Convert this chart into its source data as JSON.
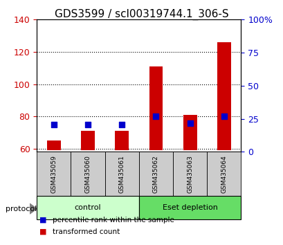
{
  "title": "GDS3599 / scl00319744.1_306-S",
  "samples": [
    "GSM435059",
    "GSM435060",
    "GSM435061",
    "GSM435062",
    "GSM435063",
    "GSM435064"
  ],
  "bar_values": [
    65,
    71,
    71,
    111,
    81,
    126
  ],
  "dot_values": [
    75,
    75,
    75,
    80,
    76,
    80
  ],
  "bar_color": "#cc0000",
  "dot_color": "#0000cc",
  "ylim_left": [
    58,
    140
  ],
  "ylim_right": [
    0,
    100
  ],
  "yticks_left": [
    60,
    80,
    100,
    120,
    140
  ],
  "yticks_right": [
    0,
    25,
    50,
    75,
    100
  ],
  "ytick_labels_right": [
    "0",
    "25",
    "50",
    "75",
    "100%"
  ],
  "groups": [
    {
      "label": "control",
      "start": 0,
      "end": 3,
      "color": "#ccffcc"
    },
    {
      "label": "Eset depletion",
      "start": 3,
      "end": 6,
      "color": "#66dd66"
    }
  ],
  "protocol_label": "protocol",
  "legend_items": [
    {
      "label": "transformed count",
      "color": "#cc0000"
    },
    {
      "label": "percentile rank within the sample",
      "color": "#0000cc"
    }
  ],
  "grid_color": "black",
  "grid_style": "dotted",
  "bar_bottom": 59,
  "left_tick_color": "#cc0000",
  "right_tick_color": "#0000cc",
  "title_fontsize": 11,
  "tick_fontsize": 9,
  "sample_box_color": "#cccccc"
}
